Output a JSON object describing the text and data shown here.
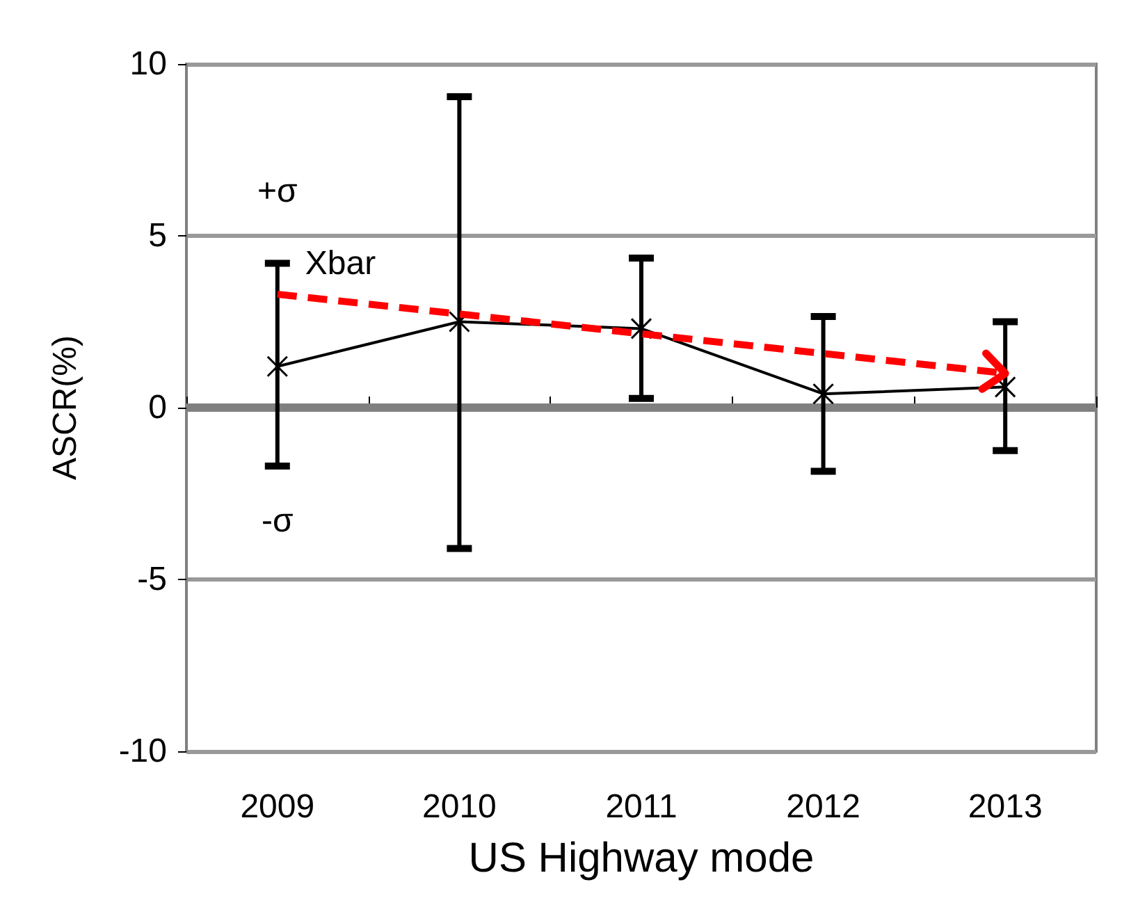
{
  "chart_data": {
    "type": "line",
    "xlabel": "US Highway mode",
    "ylabel": "ASCR(%)",
    "categories": [
      "2009",
      "2010",
      "2011",
      "2012",
      "2013"
    ],
    "series": [
      {
        "name": "Xbar",
        "color": "#000000",
        "values": [
          1.2,
          2.5,
          2.3,
          0.4,
          0.6
        ],
        "errors": [
          [
            -1.7,
            4.2
          ],
          [
            -4.1,
            9.05
          ],
          [
            0.27,
            4.35
          ],
          [
            -1.85,
            2.65
          ],
          [
            -1.25,
            2.5
          ]
        ],
        "marker": "cross",
        "line_style": "solid"
      },
      {
        "color": "#ff0000",
        "values": [
          3.3,
          null,
          null,
          null,
          1.0
        ],
        "line_style": "dashed"
      }
    ],
    "ylim": [
      -10,
      10
    ],
    "yticks": [
      -10,
      -5,
      0,
      5,
      10
    ],
    "grid": "y",
    "legend": false,
    "ref_lines": [
      {
        "axis": "y",
        "value": 0,
        "color": "#808080"
      }
    ],
    "annotations": [
      "+σ",
      "-σ"
    ]
  }
}
